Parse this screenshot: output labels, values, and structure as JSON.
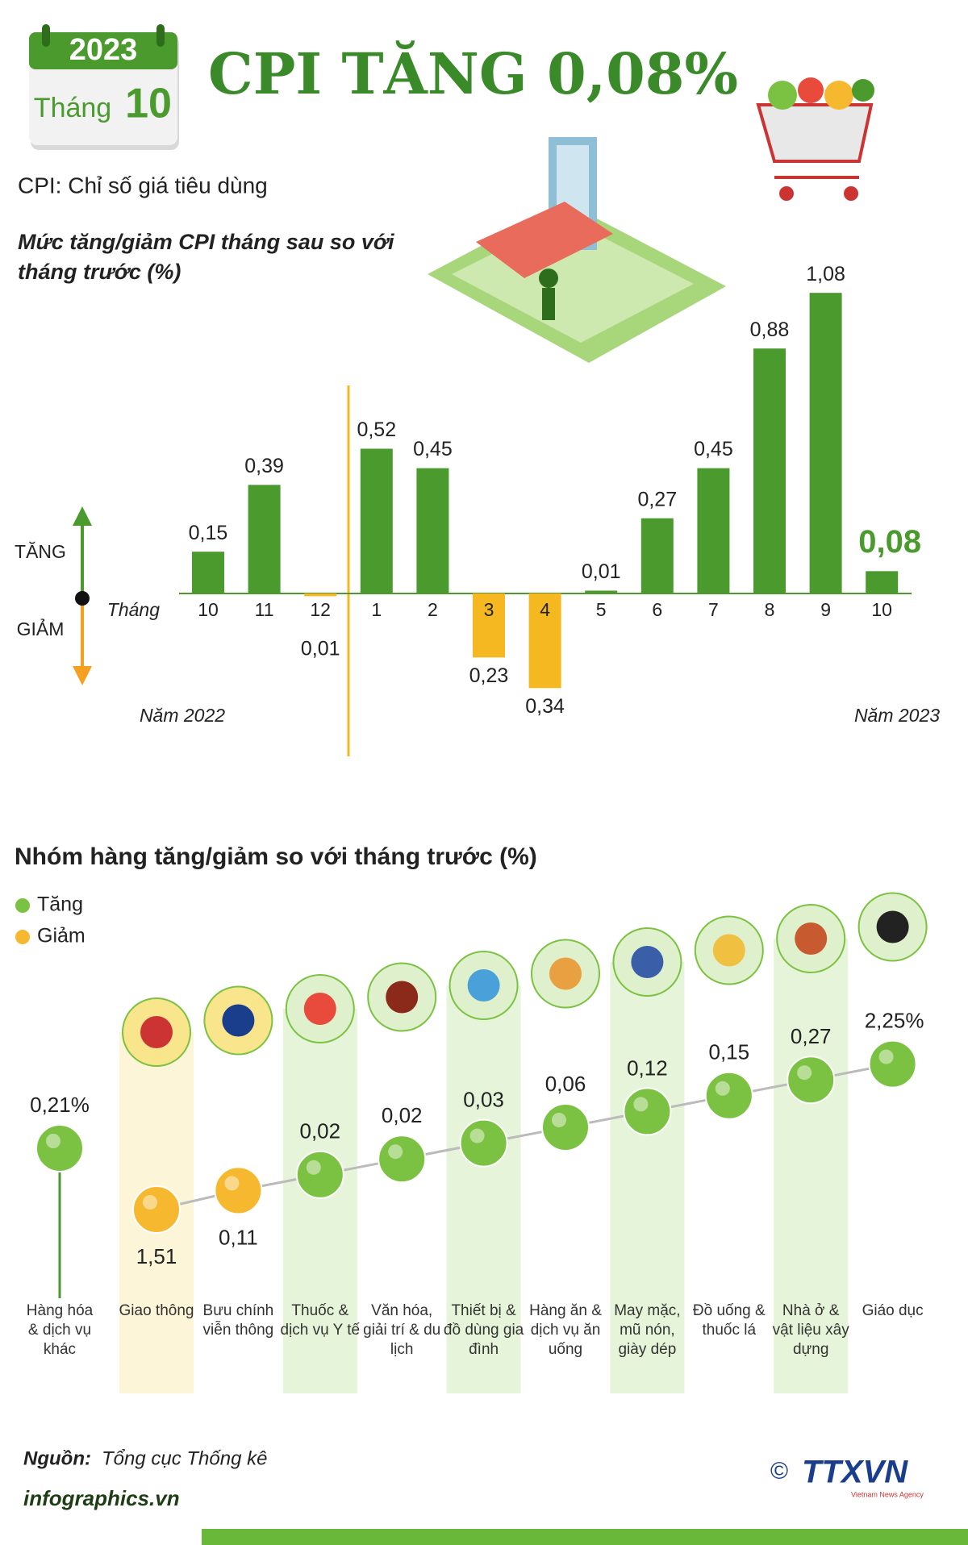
{
  "header": {
    "year": "2023",
    "month_label": "Tháng",
    "month": "10",
    "title": "CPI TĂNG 0,08%",
    "subtitle": "CPI: Chỉ số giá tiêu dùng"
  },
  "chart_data": [
    {
      "type": "bar",
      "title": "Mức tăng/giảm CPI tháng sau so với tháng trước (%)",
      "x_label": "Tháng",
      "up_label": "TĂNG",
      "down_label": "GIẢM",
      "period_labels": [
        "Năm 2022",
        "Năm 2023"
      ],
      "categories": [
        "10",
        "11",
        "12",
        "1",
        "2",
        "3",
        "4",
        "5",
        "6",
        "7",
        "8",
        "9",
        "10"
      ],
      "values": [
        0.15,
        0.39,
        -0.01,
        0.52,
        0.45,
        -0.23,
        -0.34,
        0.01,
        0.27,
        0.45,
        0.88,
        1.08,
        0.08
      ],
      "value_labels": [
        "0,15",
        "0,39",
        "0,01",
        "0,52",
        "0,45",
        "0,23",
        "0,34",
        "0,01",
        "0,27",
        "0,45",
        "0,88",
        "1,08",
        "0,08"
      ],
      "color": "#4a9a2e",
      "negative_color": "#f5b820",
      "ylim": [
        -0.4,
        1.15
      ]
    },
    {
      "type": "dot",
      "title": "Nhóm hàng tăng/giảm so với tháng trước (%)",
      "legend": [
        {
          "name": "Tăng",
          "color": "#7cc242"
        },
        {
          "name": "Giảm",
          "color": "#f5b82e"
        }
      ],
      "categories": [
        "Hàng hóa & dịch vụ khác",
        "Giao thông",
        "Bưu chính viễn thông",
        "Thuốc & dịch vụ Y tế",
        "Văn hóa, giải trí & du lịch",
        "Thiết bị & đồ dùng gia đình",
        "Hàng ăn & dịch vụ ăn uống",
        "May mặc, mũ nón, giày dép",
        "Đồ uống & thuốc lá",
        "Nhà ở & vật liệu xây dựng",
        "Giáo dục"
      ],
      "values": [
        0.21,
        -1.51,
        -0.11,
        0.02,
        0.02,
        0.03,
        0.06,
        0.12,
        0.15,
        0.27,
        2.25
      ],
      "value_labels": [
        "0,21%",
        "1,51",
        "0,11",
        "0,02",
        "0,02",
        "0,03",
        "0,06",
        "0,12",
        "0,15",
        "0,27",
        "2,25%"
      ]
    }
  ],
  "footer": {
    "source_label": "Nguồn:",
    "source": "Tổng cục Thống kê",
    "site": "infographics.vn",
    "copyright": "©",
    "agency": "TTXVN",
    "agency_sub": "Vietnam News Agency"
  }
}
